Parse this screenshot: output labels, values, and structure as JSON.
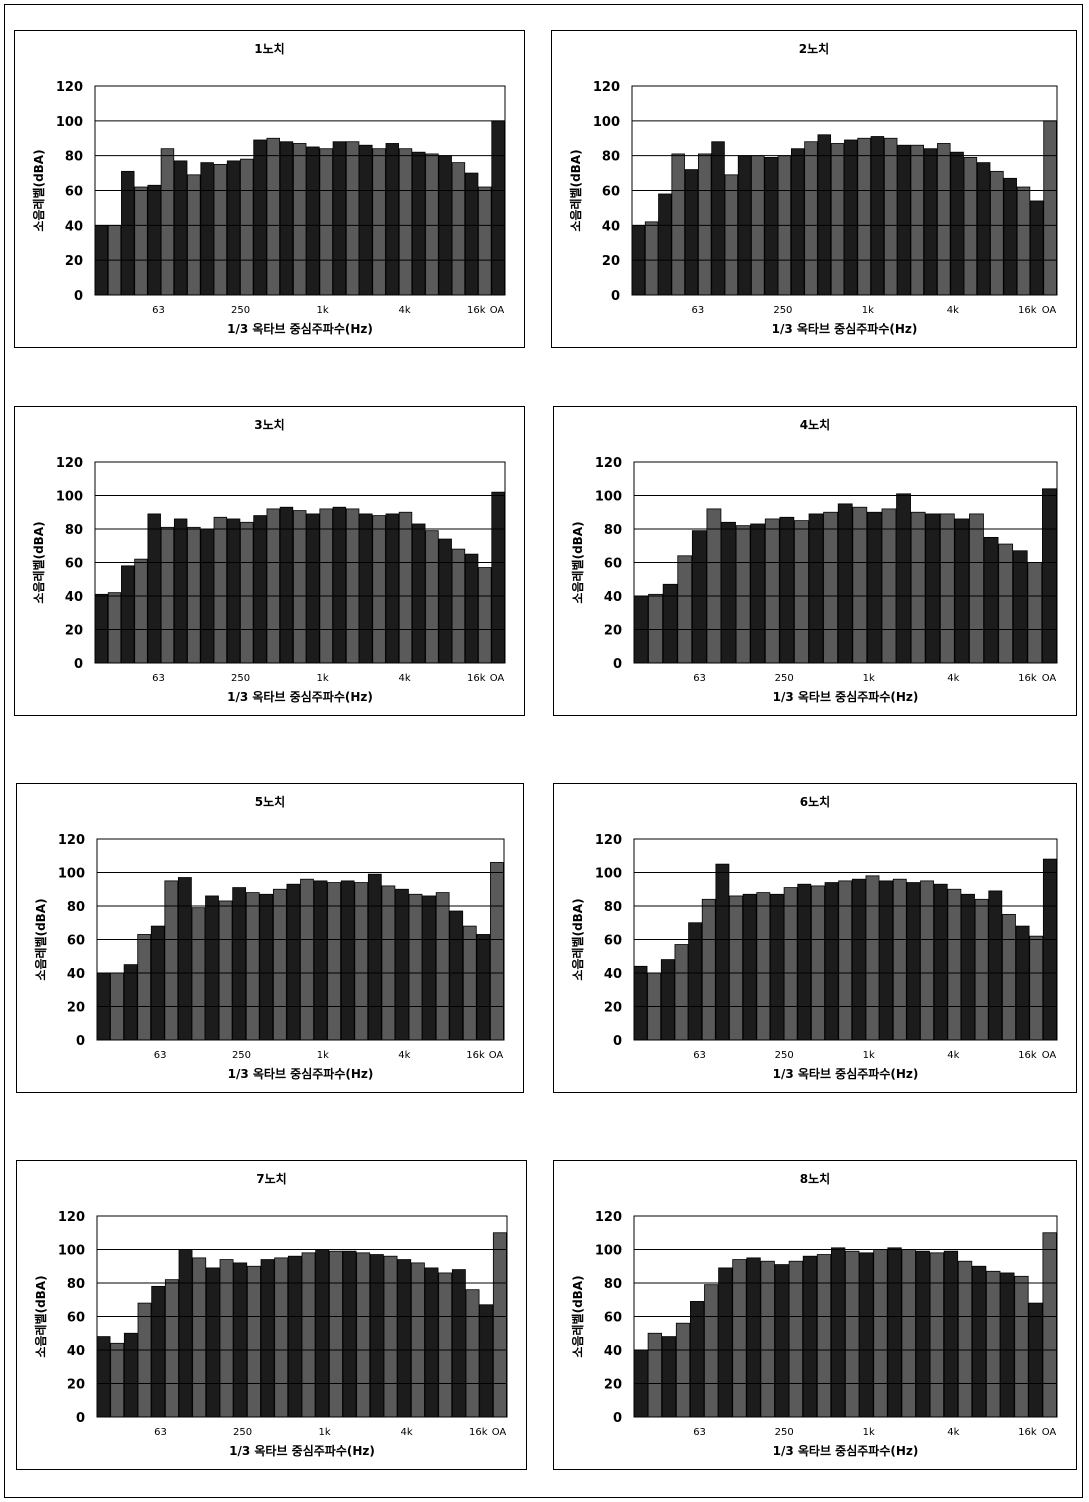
{
  "chart_data": [
    {
      "type": "bar",
      "title": "1노치",
      "xlabel": "1/3 옥타브 중심주파수(Hz)",
      "ylabel": "소음레벨(dBA)",
      "ylim": [
        0,
        120
      ],
      "yticks": [
        0,
        20,
        40,
        60,
        80,
        100,
        120
      ],
      "grid": true,
      "x_tick_labels": [
        "63",
        "250",
        "1k",
        "4k",
        "16k",
        "OA"
      ],
      "values": [
        40,
        40,
        71,
        62,
        63,
        84,
        77,
        69,
        76,
        75,
        77,
        78,
        89,
        90,
        88,
        87,
        85,
        84,
        88,
        88,
        86,
        84,
        87,
        84,
        82,
        81,
        80,
        76,
        70,
        62,
        100
      ]
    },
    {
      "type": "bar",
      "title": "2노치",
      "xlabel": "1/3 옥타브 중심주파수(Hz)",
      "ylabel": "소음레벨(dBA)",
      "ylim": [
        0,
        120
      ],
      "yticks": [
        0,
        20,
        40,
        60,
        80,
        100,
        120
      ],
      "grid": true,
      "x_tick_labels": [
        "63",
        "250",
        "1k",
        "4k",
        "16k",
        "OA"
      ],
      "values": [
        40,
        42,
        58,
        81,
        72,
        81,
        88,
        69,
        80,
        80,
        79,
        80,
        84,
        88,
        92,
        87,
        89,
        90,
        91,
        90,
        86,
        86,
        84,
        87,
        82,
        79,
        76,
        71,
        67,
        62,
        54,
        100
      ]
    },
    {
      "type": "bar",
      "title": "3노치",
      "xlabel": "1/3 옥타브 중심주파수(Hz)",
      "ylabel": "소음레벨(dBA)",
      "ylim": [
        0,
        120
      ],
      "yticks": [
        0,
        20,
        40,
        60,
        80,
        100,
        120
      ],
      "grid": true,
      "x_tick_labels": [
        "63",
        "250",
        "1k",
        "4k",
        "16k",
        "OA"
      ],
      "values": [
        41,
        42,
        58,
        62,
        89,
        81,
        86,
        81,
        80,
        87,
        86,
        84,
        88,
        92,
        93,
        91,
        89,
        92,
        93,
        92,
        89,
        88,
        89,
        90,
        83,
        79,
        74,
        68,
        65,
        57,
        102
      ]
    },
    {
      "type": "bar",
      "title": "4노치",
      "xlabel": "1/3 옥타브 중심주파수(Hz)",
      "ylabel": "소음레벨(dBA)",
      "ylim": [
        0,
        120
      ],
      "yticks": [
        0,
        20,
        40,
        60,
        80,
        100,
        120
      ],
      "grid": true,
      "x_tick_labels": [
        "63",
        "250",
        "1k",
        "4k",
        "16k",
        "OA"
      ],
      "values": [
        40,
        41,
        47,
        64,
        79,
        92,
        84,
        82,
        83,
        86,
        87,
        85,
        89,
        90,
        95,
        93,
        90,
        92,
        101,
        90,
        89,
        89,
        86,
        89,
        75,
        71,
        67,
        60,
        104
      ]
    },
    {
      "type": "bar",
      "title": "5노치",
      "xlabel": "1/3 옥타브 중심주파수(Hz)",
      "ylabel": "소음레벨(dBA)",
      "ylim": [
        0,
        120
      ],
      "yticks": [
        0,
        20,
        40,
        60,
        80,
        100,
        120
      ],
      "grid": true,
      "x_tick_labels": [
        "63",
        "250",
        "1k",
        "4k",
        "16k",
        "OA"
      ],
      "values": [
        40,
        40,
        45,
        63,
        68,
        95,
        97,
        79,
        86,
        83,
        91,
        88,
        87,
        90,
        93,
        96,
        95,
        94,
        95,
        94,
        99,
        92,
        90,
        87,
        86,
        88,
        77,
        68,
        63,
        106
      ]
    },
    {
      "type": "bar",
      "title": "6노치",
      "xlabel": "1/3 옥타브 중심주파수(Hz)",
      "ylabel": "소음레벨(dBA)",
      "ylim": [
        0,
        120
      ],
      "yticks": [
        0,
        20,
        40,
        60,
        80,
        100,
        120
      ],
      "grid": true,
      "x_tick_labels": [
        "63",
        "250",
        "1k",
        "4k",
        "16k",
        "OA"
      ],
      "values": [
        44,
        40,
        48,
        57,
        70,
        84,
        105,
        86,
        87,
        88,
        87,
        91,
        93,
        92,
        94,
        95,
        96,
        98,
        95,
        96,
        94,
        95,
        93,
        90,
        87,
        84,
        89,
        75,
        68,
        62,
        108
      ]
    },
    {
      "type": "bar",
      "title": "7노치",
      "xlabel": "1/3 옥타브 중심주파수(Hz)",
      "ylabel": "소음레벨(dBA)",
      "ylim": [
        0,
        120
      ],
      "yticks": [
        0,
        20,
        40,
        60,
        80,
        100,
        120
      ],
      "grid": true,
      "x_tick_labels": [
        "63",
        "250",
        "1k",
        "4k",
        "16k",
        "OA"
      ],
      "values": [
        48,
        44,
        50,
        68,
        78,
        82,
        100,
        95,
        89,
        94,
        92,
        90,
        94,
        95,
        96,
        98,
        100,
        99,
        99,
        98,
        97,
        96,
        94,
        92,
        89,
        86,
        88,
        76,
        67,
        110
      ]
    },
    {
      "type": "bar",
      "title": "8노치",
      "xlabel": "1/3 옥타브 중심주파수(Hz)",
      "ylabel": "소음레벨(dBA)",
      "ylim": [
        0,
        120
      ],
      "yticks": [
        0,
        20,
        40,
        60,
        80,
        100,
        120
      ],
      "grid": true,
      "x_tick_labels": [
        "63",
        "250",
        "1k",
        "4k",
        "16k",
        "OA"
      ],
      "values": [
        40,
        50,
        48,
        56,
        69,
        79,
        89,
        94,
        95,
        93,
        91,
        93,
        96,
        97,
        101,
        99,
        98,
        100,
        101,
        100,
        99,
        98,
        99,
        93,
        90,
        87,
        86,
        84,
        68,
        110
      ]
    }
  ],
  "colors": {
    "bar_fill": "#1c1c1c",
    "bar_light": "#5a5a5a",
    "bar_edge": "#000000",
    "grid": "#000000"
  }
}
